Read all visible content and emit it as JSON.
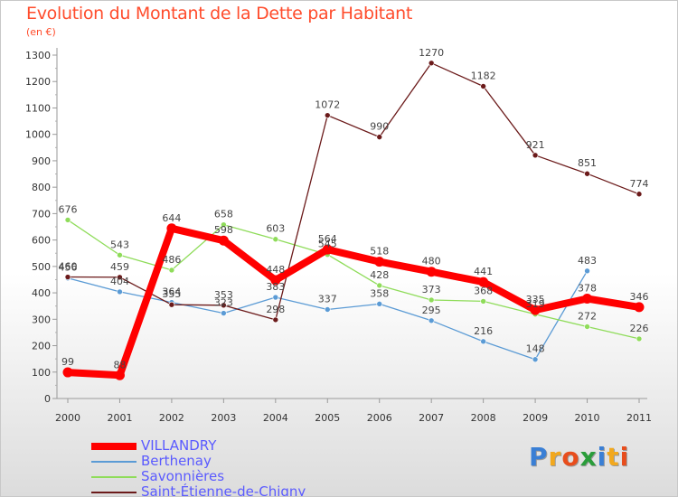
{
  "title": "Evolution du Montant de la Dette par Habitant",
  "unit": "(en €)",
  "logo_text": "Proxiti",
  "chart_data": {
    "type": "line",
    "title": "Evolution du Montant de la Dette par Habitant",
    "subtitle": "(en €)",
    "xlabel": "",
    "ylabel": "",
    "x": [
      "2000",
      "2001",
      "2002",
      "2003",
      "2004",
      "2005",
      "2006",
      "2007",
      "2008",
      "2009",
      "2010",
      "2011"
    ],
    "ylim": [
      0,
      1300
    ],
    "yticks": [
      0,
      100,
      200,
      300,
      400,
      500,
      600,
      700,
      800,
      900,
      1000,
      1100,
      1200,
      1300
    ],
    "grid": false,
    "legend": "bottom-left",
    "series": [
      {
        "name": "VILLANDRY",
        "color": "#ff0000",
        "values": [
          99,
          88,
          644,
          598,
          448,
          564,
          518,
          480,
          441,
          335,
          378,
          346
        ]
      },
      {
        "name": "Berthenay",
        "color": "#5b9bd5",
        "values": [
          456,
          404,
          364,
          323,
          383,
          337,
          358,
          295,
          216,
          148,
          483,
          null
        ]
      },
      {
        "name": "Savonnières",
        "color": "#8fdc5a",
        "values": [
          676,
          543,
          486,
          658,
          603,
          545,
          428,
          373,
          368,
          319,
          272,
          226
        ]
      },
      {
        "name": "Saint-Étienne-de-Chigny",
        "color": "#6b1a1a",
        "values": [
          460,
          459,
          355,
          353,
          298,
          1072,
          990,
          1270,
          1182,
          921,
          851,
          774
        ]
      }
    ]
  }
}
